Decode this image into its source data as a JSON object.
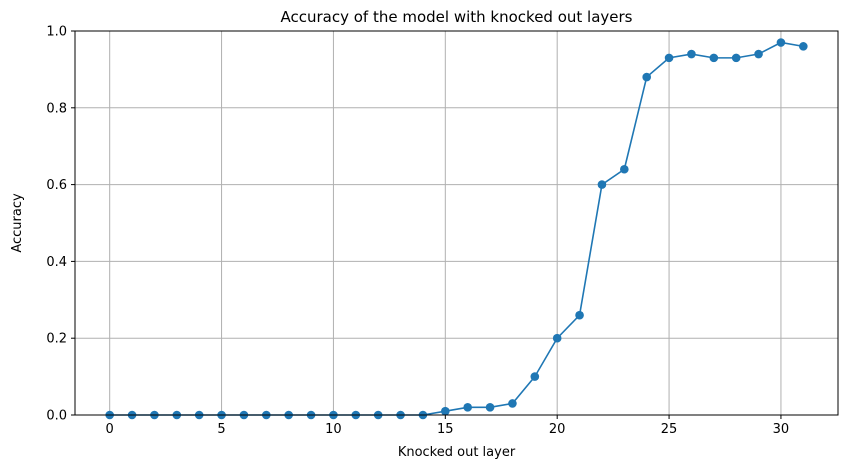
{
  "chart_data": {
    "type": "line",
    "title": "Accuracy of the model with knocked out layers",
    "xlabel": "Knocked out layer",
    "ylabel": "Accuracy",
    "xlim": [
      -1.55,
      32.55
    ],
    "ylim": [
      0,
      1.0
    ],
    "xticks": [
      0,
      5,
      10,
      15,
      20,
      25,
      30
    ],
    "yticks": [
      0.0,
      0.2,
      0.4,
      0.6,
      0.8,
      1.0
    ],
    "xtick_labels": [
      "0",
      "5",
      "10",
      "15",
      "20",
      "25",
      "30"
    ],
    "ytick_labels": [
      "0.0",
      "0.2",
      "0.4",
      "0.6",
      "0.8",
      "1.0"
    ],
    "grid": true,
    "marker": "circle",
    "color": "#1f77b4",
    "x": [
      0,
      1,
      2,
      3,
      4,
      5,
      6,
      7,
      8,
      9,
      10,
      11,
      12,
      13,
      14,
      15,
      16,
      17,
      18,
      19,
      20,
      21,
      22,
      23,
      24,
      25,
      26,
      27,
      28,
      29,
      30,
      31
    ],
    "y": [
      0,
      0,
      0,
      0,
      0,
      0,
      0,
      0,
      0,
      0,
      0,
      0,
      0,
      0,
      0,
      0.01,
      0.02,
      0.02,
      0.03,
      0.1,
      0.2,
      0.26,
      0.6,
      0.64,
      0.88,
      0.93,
      0.94,
      0.93,
      0.93,
      0.94,
      0.97,
      0.96
    ]
  }
}
